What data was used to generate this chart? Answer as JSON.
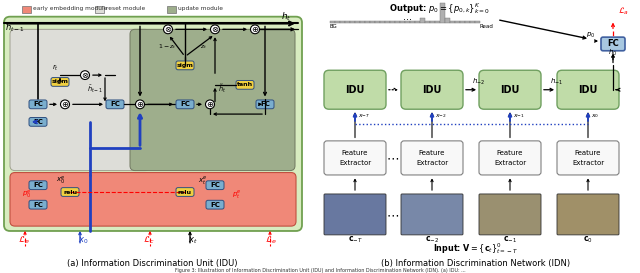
{
  "fig_width": 6.4,
  "fig_height": 2.73,
  "dpi": 100,
  "subtitle_a": "(a) Information Discrimination Unit (IDU)",
  "subtitle_b": "(b) Information Discrimination Network (IDN)",
  "legend_labels": [
    "early embedding module",
    "reset module",
    "update module"
  ],
  "legend_colors": [
    "#F08878",
    "#DDDDD8",
    "#9EAE8C"
  ],
  "colors": {
    "outer_green_fc": "#C8E0A8",
    "outer_green_bg": "#D8ECC0",
    "reset_bg": "#DDDDD8",
    "update_bg": "#9EAE8C",
    "early_bg": "#F08878",
    "early_ec": "#C05040",
    "fc_blue": "#7AAECE",
    "yellow": "#F0D040",
    "idu_bg": "#C0DCA8",
    "idu_ec": "#70A060",
    "feat_bg": "#F8F8F8",
    "feat_ec": "#808080"
  }
}
